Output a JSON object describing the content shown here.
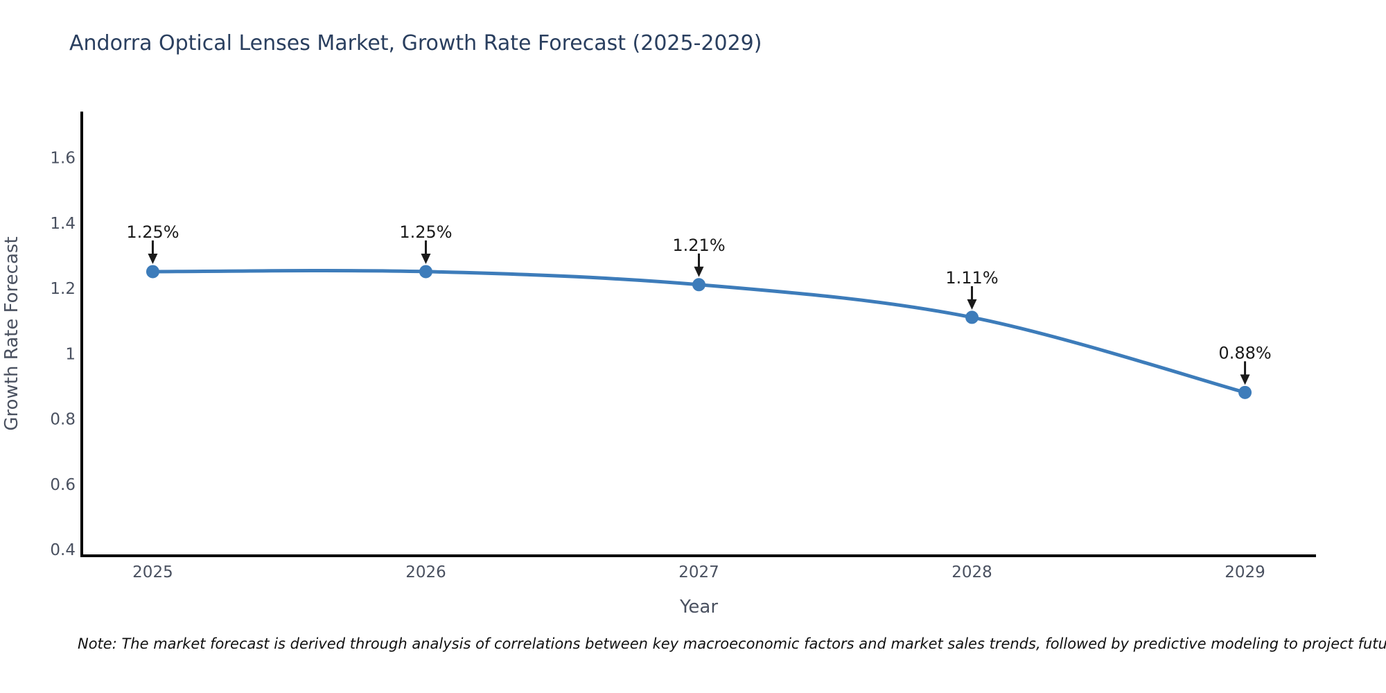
{
  "title": "Andorra Optical Lenses Market, Growth Rate Forecast (2025-2029)",
  "note": "Note: The market forecast is derived through analysis of correlations between key macroeconomic factors and market sales trends, followed by predictive modeling to project future sales",
  "chart_data": {
    "type": "line",
    "x": [
      2025,
      2026,
      2027,
      2028,
      2029
    ],
    "series": [
      {
        "name": "Growth Rate Forecast",
        "values": [
          1.25,
          1.25,
          1.21,
          1.11,
          0.88
        ]
      }
    ],
    "point_labels": [
      "1.25%",
      "1.25%",
      "1.21%",
      "1.11%",
      "0.88%"
    ],
    "title": "Andorra Optical Lenses Market, Growth Rate Forecast (2025-2029)",
    "xlabel": "Year",
    "ylabel": "Growth Rate Forecast",
    "x_tick_labels": [
      "2025",
      "2026",
      "2027",
      "2028",
      "2029"
    ],
    "y_tick_labels": [
      "0.4",
      "0.6",
      "0.8",
      "1",
      "1.2",
      "1.4",
      "1.6"
    ],
    "y_tick_values": [
      0.4,
      0.6,
      0.8,
      1.0,
      1.2,
      1.4,
      1.6
    ],
    "xlim": [
      2024.74,
      2029.26
    ],
    "ylim": [
      0.38,
      1.74
    ],
    "grid": false,
    "legend_position": "none",
    "line_shape": "spline",
    "colors": {
      "line": "#3d7cba",
      "marker": "#3d7cba",
      "axis_line": "#000000",
      "tick_label": "#4a5160",
      "axis_title": "#4a5160",
      "annotation": "#1a1a1a",
      "title": "#2a3f5f",
      "background": "#ffffff"
    }
  }
}
